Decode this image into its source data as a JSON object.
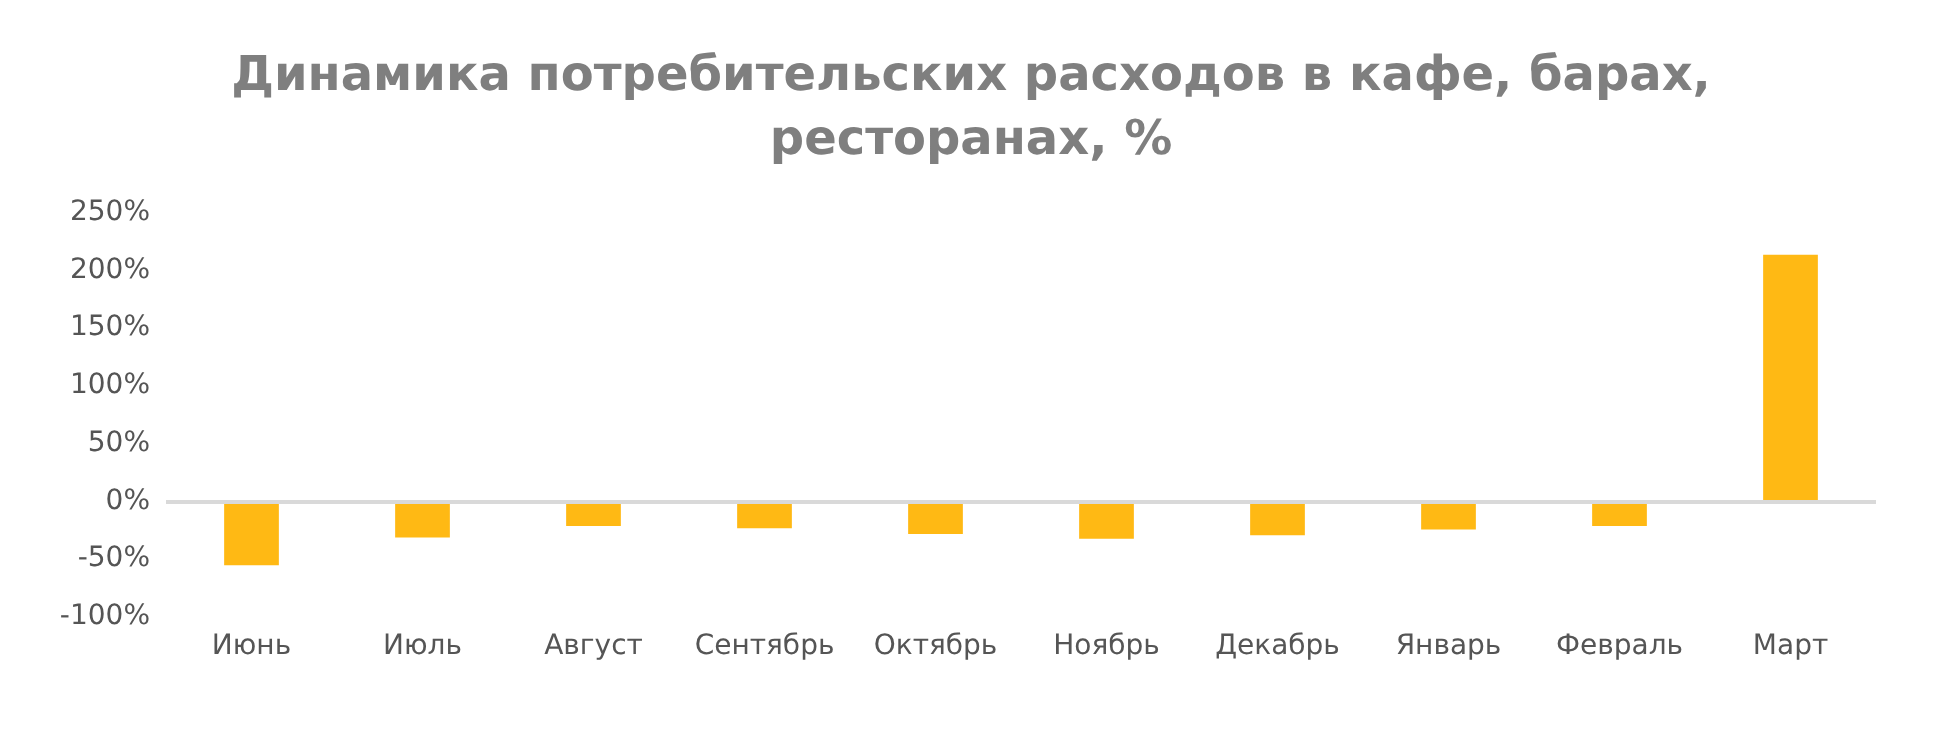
{
  "chart_data": {
    "type": "bar",
    "title": "Динамика потребительских расходов в кафе, барах,\nресторанах, %",
    "categories": [
      "Июнь",
      "Июль",
      "Август",
      "Сентябрь",
      "Октябрь",
      "Ноябрь",
      "Декабрь",
      "Январь",
      "Февраль",
      "Март"
    ],
    "values": [
      -56,
      -32,
      -22,
      -24,
      -29,
      -33,
      -30,
      -25,
      -22,
      213
    ],
    "color": "#ffb914",
    "ylim": [
      -100,
      250
    ],
    "yticks": [
      {
        "value": -100,
        "label": "-100%"
      },
      {
        "value": -50,
        "label": "-50%"
      },
      {
        "value": 0,
        "label": "0%"
      },
      {
        "value": 50,
        "label": "50%"
      },
      {
        "value": 100,
        "label": "100%"
      },
      {
        "value": 150,
        "label": "150%"
      },
      {
        "value": 200,
        "label": "200%"
      },
      {
        "value": 250,
        "label": "250%"
      }
    ],
    "ref_lines": [
      {
        "axis": "y",
        "value": 0,
        "color": "#d9d9d9"
      }
    ],
    "grid": false
  }
}
